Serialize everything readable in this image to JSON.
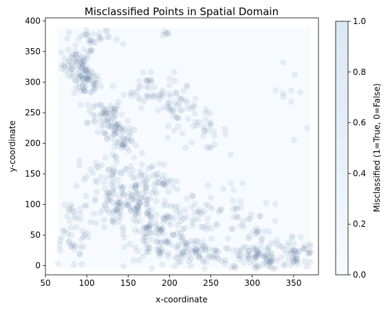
{
  "chart_data": {
    "type": "scatter",
    "title": "Misclassified Points in Spatial Domain",
    "xlabel": "x-coordinate",
    "ylabel": "y-coordinate",
    "xlim": [
      50,
      380
    ],
    "ylim": [
      -15,
      405
    ],
    "xticks": [
      "50",
      "100",
      "150",
      "200",
      "250",
      "300",
      "350"
    ],
    "xtick_values": [
      50,
      100,
      150,
      200,
      250,
      300,
      350
    ],
    "yticks": [
      "0",
      "50",
      "100",
      "150",
      "200",
      "250",
      "300",
      "350",
      "400"
    ],
    "ytick_values": [
      0,
      50,
      100,
      150,
      200,
      250,
      300,
      350,
      400
    ],
    "colorbar": {
      "label": "Misclassified (1=True, 0=False)",
      "range": [
        0,
        1
      ],
      "ticks": [
        "0.0",
        "0.2",
        "0.4",
        "0.6",
        "0.8",
        "1.0"
      ],
      "tick_values": [
        0,
        0.2,
        0.4,
        0.6,
        0.8,
        1.0
      ],
      "colormap": [
        "#f7fbff",
        "#e3eef8",
        "#c6dbef"
      ]
    },
    "marker_color": "#1f3e74",
    "marker_alpha": 0.08,
    "background_color": "#f7fbff",
    "background_extent": {
      "x": [
        65,
        370
      ],
      "y": [
        -5,
        388
      ]
    },
    "clusters": [
      {
        "x": 90,
        "y": 330,
        "sx": 10,
        "sy": 15
      },
      {
        "x": 100,
        "y": 300,
        "sx": 8,
        "sy": 12
      },
      {
        "x": 120,
        "y": 250,
        "sx": 12,
        "sy": 12
      },
      {
        "x": 135,
        "y": 225,
        "sx": 10,
        "sy": 8
      },
      {
        "x": 145,
        "y": 200,
        "sx": 8,
        "sy": 8
      },
      {
        "x": 175,
        "y": 290,
        "sx": 15,
        "sy": 15
      },
      {
        "x": 210,
        "y": 260,
        "sx": 12,
        "sy": 15
      },
      {
        "x": 240,
        "y": 220,
        "sx": 15,
        "sy": 15
      },
      {
        "x": 140,
        "y": 100,
        "sx": 20,
        "sy": 25
      },
      {
        "x": 190,
        "y": 50,
        "sx": 20,
        "sy": 20
      },
      {
        "x": 230,
        "y": 20,
        "sx": 20,
        "sy": 12
      },
      {
        "x": 310,
        "y": 15,
        "sx": 25,
        "sy": 12
      },
      {
        "x": 350,
        "y": 20,
        "sx": 15,
        "sy": 15
      },
      {
        "x": 80,
        "y": 60,
        "sx": 12,
        "sy": 30
      },
      {
        "x": 190,
        "y": 135,
        "sx": 8,
        "sy": 8
      },
      {
        "x": 160,
        "y": 150,
        "sx": 15,
        "sy": 15
      },
      {
        "x": 260,
        "y": 100,
        "sx": 20,
        "sy": 25
      },
      {
        "x": 300,
        "y": 60,
        "sx": 20,
        "sy": 20
      },
      {
        "x": 110,
        "y": 370,
        "sx": 15,
        "sy": 8
      },
      {
        "x": 350,
        "y": 270,
        "sx": 15,
        "sy": 40
      },
      {
        "x": 200,
        "y": 380,
        "sx": 10,
        "sy": 5
      },
      {
        "x": 225,
        "y": 80,
        "sx": 15,
        "sy": 15
      },
      {
        "x": 120,
        "y": 160,
        "sx": 15,
        "sy": 10
      },
      {
        "x": 170,
        "y": 100,
        "sx": 15,
        "sy": 20
      }
    ],
    "cluster_weights": [
      60,
      50,
      45,
      35,
      25,
      40,
      40,
      30,
      110,
      95,
      70,
      70,
      50,
      45,
      18,
      30,
      25,
      30,
      25,
      10,
      5,
      30,
      20,
      40
    ]
  }
}
